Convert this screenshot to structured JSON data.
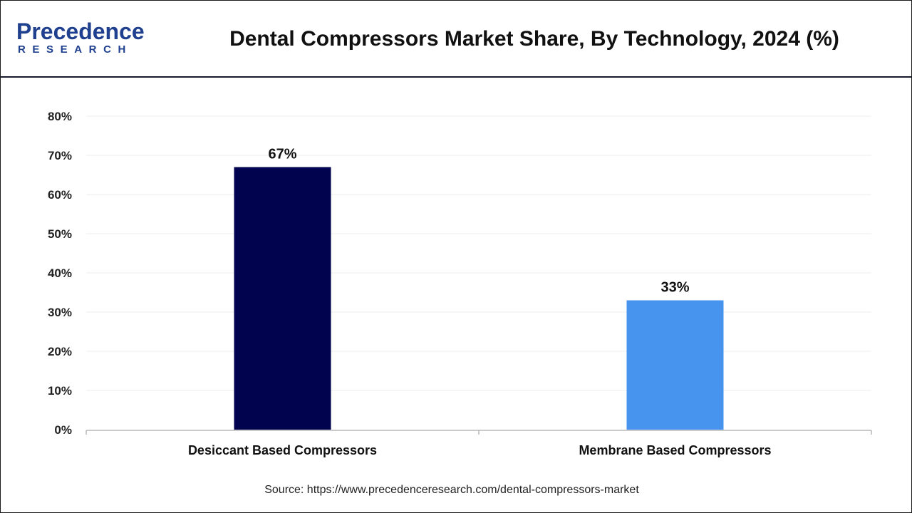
{
  "header": {
    "logo_top": "Precedence",
    "logo_bottom": "RESEARCH",
    "title": "Dental Compressors Market Share, By Technology, 2024 (%)"
  },
  "footer": {
    "source": "Source: https://www.precedenceresearch.com/dental-compressors-market"
  },
  "colors": {
    "brand": "#1f3f8f",
    "desiccant_bar": "#02034f",
    "membrane_bar": "#4794ee"
  },
  "chart_data": {
    "type": "bar",
    "categories": [
      "Desiccant Based Compressors",
      "Membrane Based Compressors"
    ],
    "values": [
      67,
      33
    ],
    "value_labels": [
      "67%",
      "33%"
    ],
    "bar_colors": [
      "#02034f",
      "#4794ee"
    ],
    "ylim": [
      0,
      80
    ],
    "yticks": [
      0,
      10,
      20,
      30,
      40,
      50,
      60,
      70,
      80
    ],
    "ytick_labels": [
      "0%",
      "10%",
      "20%",
      "30%",
      "40%",
      "50%",
      "60%",
      "70%",
      "80%"
    ],
    "grid": true
  }
}
